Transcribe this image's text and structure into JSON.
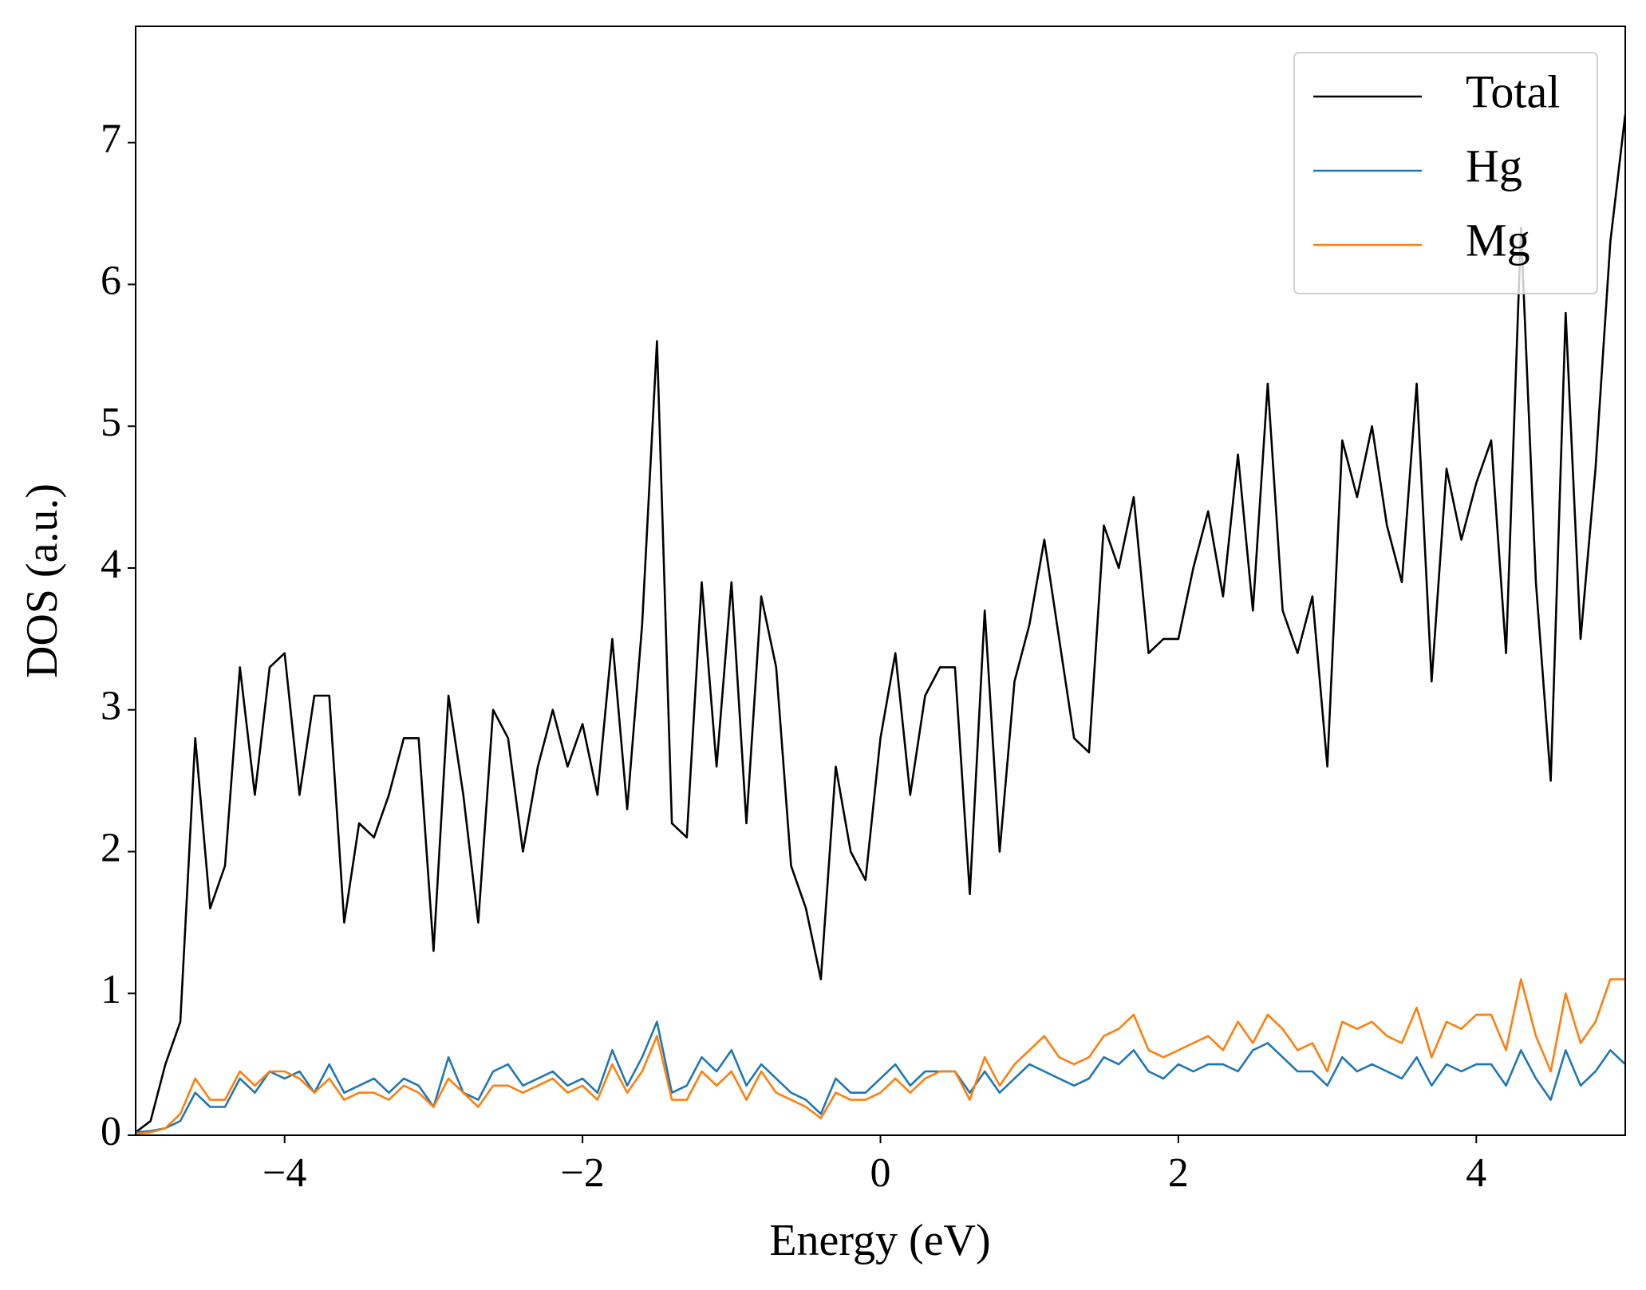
{
  "chart_data": {
    "type": "line",
    "xlabel": "Energy (eV)",
    "ylabel": "DOS (a.u.)",
    "x": [
      -5.0,
      -4.9,
      -4.8,
      -4.7,
      -4.6,
      -4.5,
      -4.4,
      -4.3,
      -4.2,
      -4.1,
      -4.0,
      -3.9,
      -3.8,
      -3.7,
      -3.6,
      -3.5,
      -3.4,
      -3.3,
      -3.2,
      -3.1,
      -3.0,
      -2.9,
      -2.8,
      -2.7,
      -2.6,
      -2.5,
      -2.4,
      -2.3,
      -2.2,
      -2.1,
      -2.0,
      -1.9,
      -1.8,
      -1.7,
      -1.6,
      -1.5,
      -1.4,
      -1.3,
      -1.2,
      -1.1,
      -1.0,
      -0.9,
      -0.8,
      -0.7,
      -0.6,
      -0.5,
      -0.4,
      -0.3,
      -0.2,
      -0.1,
      0.0,
      0.1,
      0.2,
      0.3,
      0.4,
      0.5,
      0.6,
      0.7,
      0.8,
      0.9,
      1.0,
      1.1,
      1.2,
      1.3,
      1.4,
      1.5,
      1.6,
      1.7,
      1.8,
      1.9,
      2.0,
      2.1,
      2.2,
      2.3,
      2.4,
      2.5,
      2.6,
      2.7,
      2.8,
      2.9,
      3.0,
      3.1,
      3.2,
      3.3,
      3.4,
      3.5,
      3.6,
      3.7,
      3.8,
      3.9,
      4.0,
      4.1,
      4.2,
      4.3,
      4.4,
      4.5,
      4.6,
      4.7,
      4.8,
      4.9,
      5.0
    ],
    "series": [
      {
        "name": "Total",
        "color": "#000000",
        "values": [
          0.02,
          0.1,
          0.5,
          0.8,
          2.8,
          1.6,
          1.9,
          3.3,
          2.4,
          3.3,
          3.4,
          2.4,
          3.1,
          3.1,
          1.5,
          2.2,
          2.1,
          2.4,
          2.8,
          2.8,
          1.3,
          3.1,
          2.4,
          1.5,
          3.0,
          2.8,
          2.0,
          2.6,
          3.0,
          2.6,
          2.9,
          2.4,
          3.5,
          2.3,
          3.6,
          5.6,
          2.2,
          2.1,
          3.9,
          2.6,
          3.9,
          2.2,
          3.8,
          3.3,
          1.9,
          1.6,
          1.1,
          2.6,
          2.0,
          1.8,
          2.8,
          3.4,
          2.4,
          3.1,
          3.3,
          3.3,
          1.7,
          3.7,
          2.0,
          3.2,
          3.6,
          4.2,
          3.5,
          2.8,
          2.7,
          4.3,
          4.0,
          4.5,
          3.4,
          3.5,
          3.5,
          4.0,
          4.4,
          3.8,
          4.8,
          3.7,
          5.3,
          3.7,
          3.4,
          3.8,
          2.6,
          4.9,
          4.5,
          5.0,
          4.3,
          3.9,
          5.3,
          3.2,
          4.7,
          4.2,
          4.6,
          4.9,
          3.4,
          6.4,
          3.9,
          2.5,
          5.8,
          3.5,
          4.7,
          6.3,
          7.2
        ]
      },
      {
        "name": "Hg",
        "color": "#1f77b4",
        "values": [
          0.02,
          0.03,
          0.05,
          0.1,
          0.3,
          0.2,
          0.2,
          0.4,
          0.3,
          0.45,
          0.4,
          0.45,
          0.3,
          0.5,
          0.3,
          0.35,
          0.4,
          0.3,
          0.4,
          0.35,
          0.2,
          0.55,
          0.3,
          0.25,
          0.45,
          0.5,
          0.35,
          0.4,
          0.45,
          0.35,
          0.4,
          0.3,
          0.6,
          0.35,
          0.55,
          0.8,
          0.3,
          0.35,
          0.55,
          0.45,
          0.6,
          0.35,
          0.5,
          0.4,
          0.3,
          0.25,
          0.15,
          0.4,
          0.3,
          0.3,
          0.4,
          0.5,
          0.35,
          0.45,
          0.45,
          0.45,
          0.3,
          0.45,
          0.3,
          0.4,
          0.5,
          0.45,
          0.4,
          0.35,
          0.4,
          0.55,
          0.5,
          0.6,
          0.45,
          0.4,
          0.5,
          0.45,
          0.5,
          0.5,
          0.45,
          0.6,
          0.65,
          0.55,
          0.45,
          0.45,
          0.35,
          0.55,
          0.45,
          0.5,
          0.45,
          0.4,
          0.55,
          0.35,
          0.5,
          0.45,
          0.5,
          0.5,
          0.35,
          0.6,
          0.4,
          0.25,
          0.6,
          0.35,
          0.45,
          0.6,
          0.5
        ]
      },
      {
        "name": "Mg",
        "color": "#ff7f0e",
        "values": [
          0.01,
          0.02,
          0.05,
          0.15,
          0.4,
          0.25,
          0.25,
          0.45,
          0.35,
          0.45,
          0.45,
          0.4,
          0.3,
          0.4,
          0.25,
          0.3,
          0.3,
          0.25,
          0.35,
          0.3,
          0.2,
          0.4,
          0.3,
          0.2,
          0.35,
          0.35,
          0.3,
          0.35,
          0.4,
          0.3,
          0.35,
          0.25,
          0.5,
          0.3,
          0.45,
          0.7,
          0.25,
          0.25,
          0.45,
          0.35,
          0.45,
          0.25,
          0.45,
          0.3,
          0.25,
          0.2,
          0.12,
          0.3,
          0.25,
          0.25,
          0.3,
          0.4,
          0.3,
          0.4,
          0.45,
          0.45,
          0.25,
          0.55,
          0.35,
          0.5,
          0.6,
          0.7,
          0.55,
          0.5,
          0.55,
          0.7,
          0.75,
          0.85,
          0.6,
          0.55,
          0.6,
          0.65,
          0.7,
          0.6,
          0.8,
          0.65,
          0.85,
          0.75,
          0.6,
          0.65,
          0.45,
          0.8,
          0.75,
          0.8,
          0.7,
          0.65,
          0.9,
          0.55,
          0.8,
          0.75,
          0.85,
          0.85,
          0.6,
          1.1,
          0.7,
          0.45,
          1.0,
          0.65,
          0.8,
          1.1,
          1.1
        ]
      }
    ],
    "xlim": [
      -5,
      5
    ],
    "ylim": [
      0,
      7.82
    ],
    "xticks": [
      {
        "value": -4,
        "label": "−4"
      },
      {
        "value": -2,
        "label": "−2"
      },
      0,
      2,
      4
    ],
    "yticks": [
      0,
      1,
      2,
      3,
      4,
      5,
      6,
      7
    ],
    "legend": "upper right",
    "grid": false
  }
}
